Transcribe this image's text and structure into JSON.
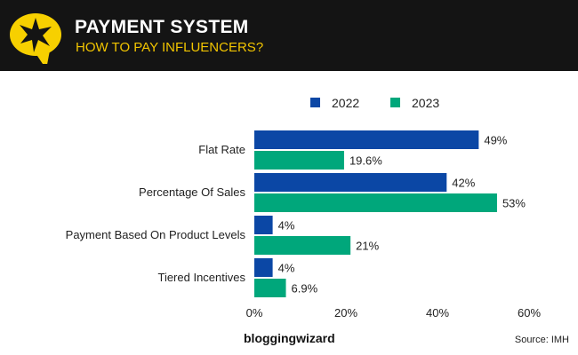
{
  "header": {
    "title": "PAYMENT SYSTEM",
    "subtitle": "HOW TO PAY INFLUENCERS?"
  },
  "footer": {
    "brand": "bloggingwizard",
    "source": "Source: IMH"
  },
  "chart_data": {
    "type": "bar",
    "orientation": "horizontal",
    "categories": [
      "Flat Rate",
      "Percentage Of Sales",
      "Payment Based On Product Levels",
      "Tiered Incentives"
    ],
    "series": [
      {
        "name": "2022",
        "color": "#0b47a5",
        "values": [
          49,
          42,
          4,
          4
        ],
        "labels": [
          "49%",
          "42%",
          "4%",
          "4%"
        ]
      },
      {
        "name": "2023",
        "color": "#00a77b",
        "values": [
          19.6,
          53,
          21,
          6.9
        ],
        "labels": [
          "19.6%",
          "53%",
          "21%",
          "6.9%"
        ]
      }
    ],
    "xlim": [
      0,
      60
    ],
    "xticks": [
      "0%",
      "20%",
      "40%",
      "60%"
    ],
    "xtick_values": [
      0,
      20,
      40,
      60
    ],
    "grid": false,
    "legend": "top"
  }
}
